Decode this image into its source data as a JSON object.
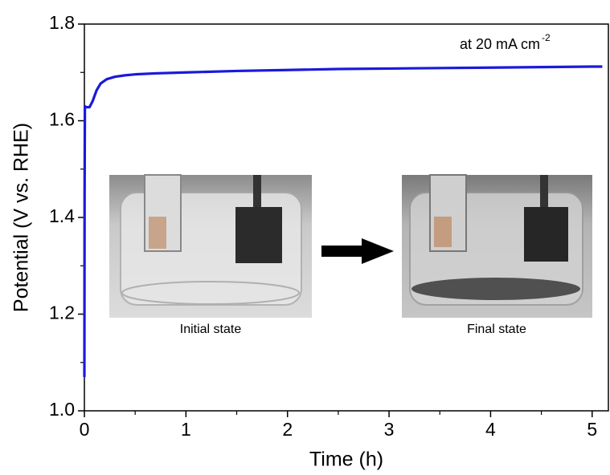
{
  "chart_data": {
    "type": "line",
    "xlabel": "Time (h)",
    "ylabel": "Potential (V vs. RHE)",
    "annotation": {
      "text": "at 20 mA cm",
      "superscript": "-2"
    },
    "insets": [
      {
        "caption": "Initial state"
      },
      {
        "caption": "Final state"
      }
    ],
    "x": [
      0,
      0.002,
      0.005,
      0.02,
      0.05,
      0.08,
      0.12,
      0.16,
      0.22,
      0.3,
      0.4,
      0.5,
      0.7,
      1.0,
      1.5,
      2.0,
      2.5,
      3.0,
      3.5,
      4.0,
      4.5,
      5.0,
      5.1
    ],
    "values": [
      1.07,
      1.45,
      1.63,
      1.628,
      1.628,
      1.64,
      1.663,
      1.677,
      1.686,
      1.691,
      1.694,
      1.696,
      1.698,
      1.7,
      1.703,
      1.705,
      1.707,
      1.708,
      1.709,
      1.71,
      1.711,
      1.712,
      1.712
    ],
    "color": "#1a1adb",
    "xlim": [
      0,
      5.16
    ],
    "ylim": [
      1.0,
      1.8
    ],
    "xticks": [
      0,
      1,
      2,
      3,
      4,
      5
    ],
    "yticks": [
      {
        "value": 1.0,
        "label": "1.0"
      },
      1.2,
      1.4,
      1.6,
      1.8
    ],
    "xminorticks": [
      0.5,
      1.5,
      2.5,
      3.5,
      4.5
    ],
    "yminorticks": [
      1.1,
      1.3,
      1.5,
      1.7
    ]
  }
}
